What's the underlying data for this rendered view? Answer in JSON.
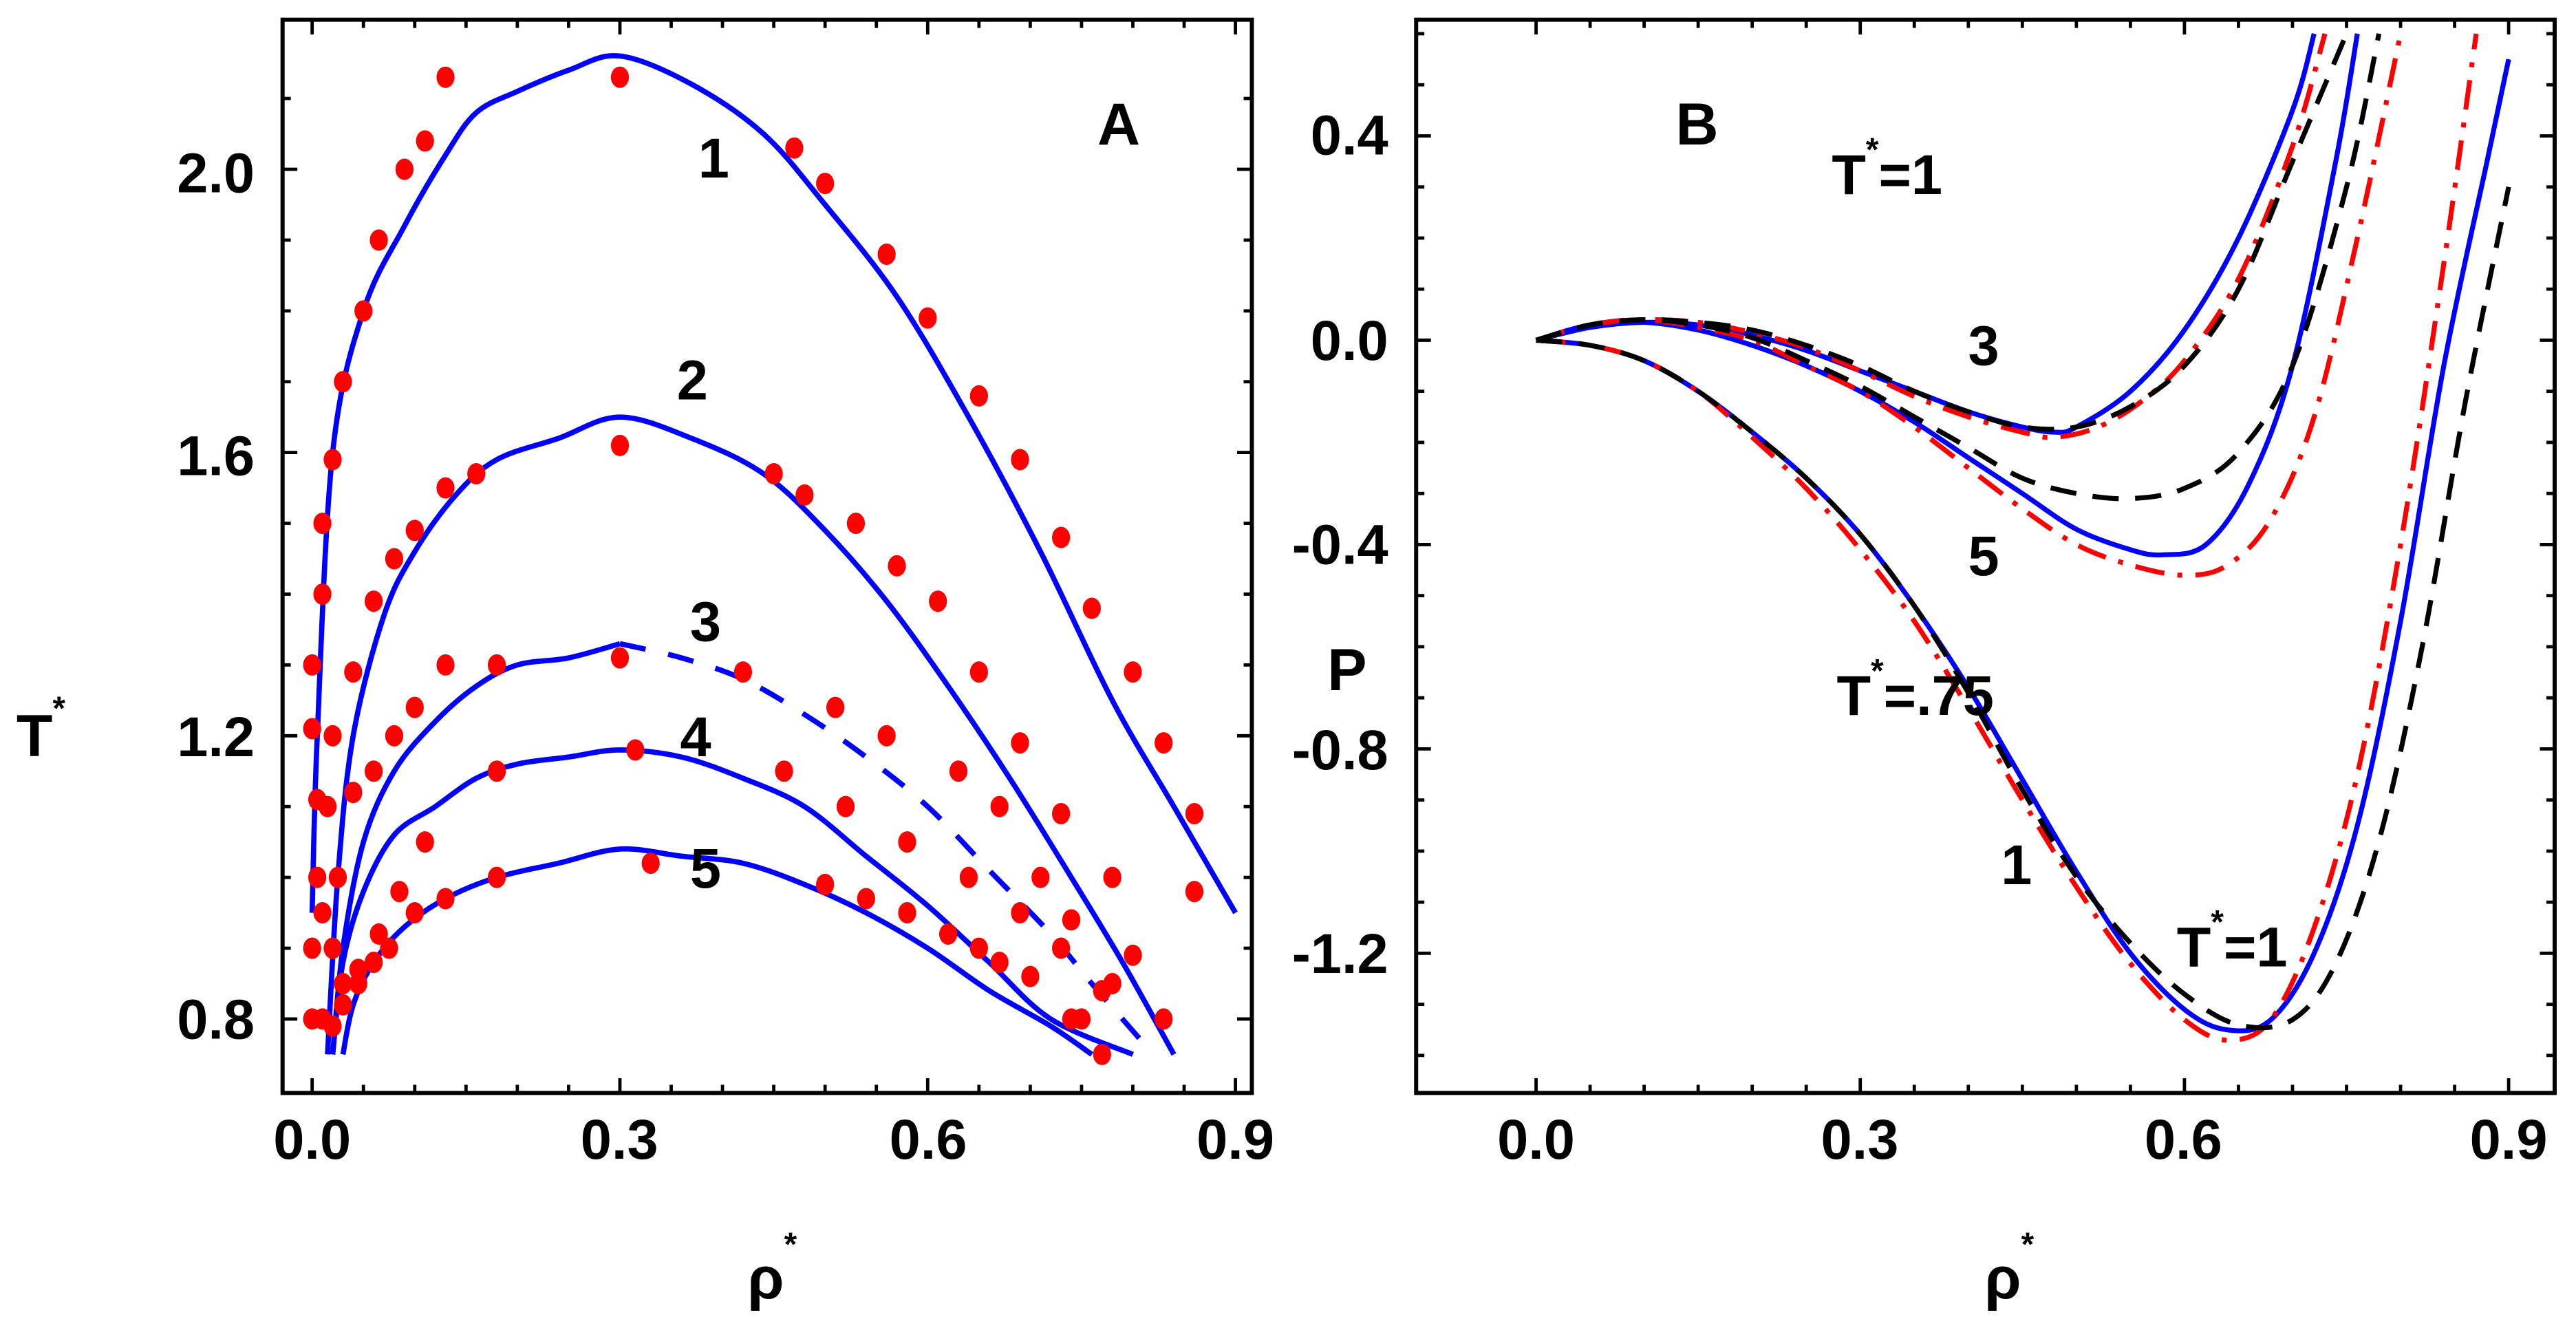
{
  "chart_data": [
    {
      "panel": "A",
      "type": "line",
      "title": "",
      "xlabel": "ρ*",
      "ylabel": "T*",
      "xlim": [
        -0.01,
        0.92
      ],
      "ylim": [
        0.74,
        2.18
      ],
      "xticks": [
        "0.0",
        "0.3",
        "0.6",
        "0.9"
      ],
      "yticks": [
        "0.8",
        "1.2",
        "1.6",
        "2.0"
      ],
      "grid": false,
      "annotations": [
        "A",
        "1",
        "2",
        "3",
        "4",
        "5"
      ],
      "series": [
        {
          "name": "1 (theory, solid blue)",
          "style": "solid",
          "color": "#0000ff",
          "x": [
            0.0,
            0.005,
            0.02,
            0.05,
            0.09,
            0.13,
            0.16,
            0.2,
            0.25,
            0.3,
            0.37,
            0.44,
            0.5,
            0.57,
            0.64,
            0.71,
            0.78,
            0.84,
            0.9
          ],
          "y": [
            0.95,
            1.2,
            1.6,
            1.8,
            1.92,
            2.02,
            2.08,
            2.11,
            2.14,
            2.16,
            2.12,
            2.05,
            1.95,
            1.82,
            1.65,
            1.46,
            1.25,
            1.1,
            0.95
          ]
        },
        {
          "name": "2 (theory, solid blue)",
          "style": "solid",
          "color": "#0000ff",
          "x": [
            0.015,
            0.025,
            0.04,
            0.07,
            0.1,
            0.14,
            0.18,
            0.24,
            0.3,
            0.37,
            0.44,
            0.5,
            0.56,
            0.62,
            0.68,
            0.74,
            0.79,
            0.84
          ],
          "y": [
            0.75,
            1.0,
            1.2,
            1.37,
            1.46,
            1.54,
            1.59,
            1.62,
            1.65,
            1.62,
            1.57,
            1.49,
            1.39,
            1.27,
            1.14,
            1.0,
            0.88,
            0.75
          ]
        },
        {
          "name": "3 (theory, solid→dashed blue)",
          "style": "solid-then-dashed",
          "color": "#0000ff",
          "x": [
            0.02,
            0.03,
            0.05,
            0.08,
            0.12,
            0.16,
            0.2,
            0.25,
            0.3,
            0.36,
            0.42,
            0.48,
            0.54,
            0.6,
            0.66,
            0.72,
            0.76,
            0.82
          ],
          "y": [
            0.75,
            0.9,
            1.05,
            1.15,
            1.22,
            1.27,
            1.3,
            1.31,
            1.33,
            1.31,
            1.28,
            1.23,
            1.17,
            1.1,
            1.01,
            0.92,
            0.85,
            0.75
          ]
        },
        {
          "name": "4 (theory, solid blue)",
          "style": "solid",
          "color": "#0000ff",
          "x": [
            0.02,
            0.03,
            0.05,
            0.08,
            0.12,
            0.16,
            0.2,
            0.25,
            0.3,
            0.36,
            0.42,
            0.48,
            0.54,
            0.6,
            0.66,
            0.72,
            0.8
          ],
          "y": [
            0.75,
            0.88,
            0.98,
            1.06,
            1.1,
            1.14,
            1.16,
            1.17,
            1.18,
            1.17,
            1.14,
            1.1,
            1.03,
            0.96,
            0.88,
            0.8,
            0.75
          ]
        },
        {
          "name": "5 (theory, solid blue)",
          "style": "solid",
          "color": "#0000ff",
          "x": [
            0.03,
            0.04,
            0.06,
            0.09,
            0.13,
            0.18,
            0.24,
            0.3,
            0.36,
            0.42,
            0.48,
            0.54,
            0.6,
            0.66,
            0.72,
            0.76
          ],
          "y": [
            0.75,
            0.82,
            0.88,
            0.93,
            0.97,
            1.0,
            1.02,
            1.04,
            1.03,
            1.02,
            0.99,
            0.95,
            0.9,
            0.84,
            0.79,
            0.75
          ]
        },
        {
          "name": "simulation points (red circles)",
          "style": "markers",
          "color": "#ff0000",
          "x": [
            0.0,
            0.0,
            0.005,
            0.005,
            0.0,
            0.01,
            0.02,
            0.03,
            0.05,
            0.065,
            0.09,
            0.11,
            0.13,
            0.3,
            0.47,
            0.5,
            0.56,
            0.6,
            0.65,
            0.69,
            0.73,
            0.76,
            0.8,
            0.83,
            0.86,
            0.86,
            0.01,
            0.02,
            0.04,
            0.06,
            0.08,
            0.1,
            0.13,
            0.16,
            0.3,
            0.45,
            0.48,
            0.53,
            0.57,
            0.61,
            0.65,
            0.69,
            0.73,
            0.78,
            0.8,
            0.83,
            0.015,
            0.025,
            0.04,
            0.06,
            0.08,
            0.1,
            0.13,
            0.18,
            0.3,
            0.42,
            0.51,
            0.56,
            0.63,
            0.67,
            0.71,
            0.74,
            0.78,
            0.01,
            0.02,
            0.03,
            0.045,
            0.065,
            0.085,
            0.11,
            0.18,
            0.315,
            0.46,
            0.52,
            0.58,
            0.64,
            0.69,
            0.73,
            0.77,
            0.0,
            0.01,
            0.02,
            0.03,
            0.045,
            0.06,
            0.075,
            0.1,
            0.13,
            0.18,
            0.33,
            0.5,
            0.54,
            0.58,
            0.62,
            0.65,
            0.67,
            0.7,
            0.74,
            0.75,
            0.77
          ],
          "y": [
            1.3,
            1.21,
            1.11,
            1.0,
            0.9,
            1.4,
            1.59,
            1.7,
            1.8,
            1.9,
            2.0,
            2.04,
            2.13,
            2.13,
            2.03,
            1.98,
            1.88,
            1.79,
            1.68,
            1.59,
            1.48,
            1.38,
            1.29,
            1.19,
            1.09,
            0.98,
            1.5,
            1.2,
            1.29,
            1.39,
            1.45,
            1.49,
            1.55,
            1.57,
            1.61,
            1.57,
            1.54,
            1.5,
            1.44,
            1.39,
            1.29,
            1.19,
            1.09,
            1.0,
            0.89,
            0.8,
            1.1,
            1.0,
            1.12,
            1.15,
            1.2,
            1.24,
            1.3,
            1.3,
            1.31,
            1.29,
            1.24,
            1.2,
            1.15,
            1.1,
            1.0,
            0.94,
            0.85,
            0.95,
            0.9,
            0.85,
            0.87,
            0.92,
            0.98,
            1.05,
            1.15,
            1.18,
            1.15,
            1.1,
            1.05,
            1.0,
            0.95,
            0.9,
            0.84,
            0.8,
            0.8,
            0.79,
            0.82,
            0.85,
            0.88,
            0.9,
            0.95,
            0.97,
            1.0,
            1.02,
            0.99,
            0.97,
            0.95,
            0.92,
            0.9,
            0.88,
            0.86,
            0.8,
            0.8,
            0.75
          ]
        }
      ]
    },
    {
      "panel": "B",
      "type": "line",
      "title": "",
      "xlabel": "ρ*",
      "ylabel": "P",
      "xlim": [
        0.0,
        0.92
      ],
      "ylim": [
        -1.4,
        0.6
      ],
      "xticks": [
        "0.0",
        "0.3",
        "0.6",
        "0.9"
      ],
      "yticks": [
        "-1.2",
        "-0.8",
        "-0.4",
        "0.0",
        "0.4"
      ],
      "grid": false,
      "annotations": [
        "B",
        "T*=1",
        "3",
        "5",
        "T*=.75",
        "1",
        "T*=1"
      ],
      "series": [
        {
          "name": "curve 3 (T*=1) blue solid",
          "style": "solid",
          "color": "#0000ff",
          "x": [
            0.0,
            0.05,
            0.1,
            0.15,
            0.2,
            0.25,
            0.3,
            0.35,
            0.4,
            0.45,
            0.48,
            0.5,
            0.55,
            0.6,
            0.65,
            0.7,
            0.72
          ],
          "y": [
            0.0,
            0.025,
            0.035,
            0.03,
            0.01,
            -0.02,
            -0.06,
            -0.1,
            -0.14,
            -0.17,
            -0.18,
            -0.17,
            -0.1,
            0.02,
            0.2,
            0.45,
            0.6
          ]
        },
        {
          "name": "curve 3 (T*=1) red dash-dot",
          "style": "dashdot",
          "color": "#ff0000",
          "x": [
            0.0,
            0.05,
            0.1,
            0.15,
            0.2,
            0.25,
            0.3,
            0.35,
            0.4,
            0.45,
            0.48,
            0.52,
            0.56,
            0.6,
            0.65,
            0.7,
            0.73
          ],
          "y": [
            0.0,
            0.03,
            0.04,
            0.035,
            0.015,
            -0.015,
            -0.06,
            -0.11,
            -0.15,
            -0.18,
            -0.19,
            -0.17,
            -0.12,
            -0.04,
            0.12,
            0.38,
            0.6
          ]
        },
        {
          "name": "curve 3 (T*=1) black dashed",
          "style": "dashed",
          "color": "#000000",
          "x": [
            0.0,
            0.05,
            0.1,
            0.15,
            0.2,
            0.25,
            0.3,
            0.35,
            0.4,
            0.45,
            0.5,
            0.55,
            0.6,
            0.65,
            0.7,
            0.75
          ],
          "y": [
            0.0,
            0.03,
            0.04,
            0.035,
            0.02,
            -0.01,
            -0.05,
            -0.1,
            -0.14,
            -0.17,
            -0.17,
            -0.13,
            -0.05,
            0.1,
            0.35,
            0.6
          ]
        },
        {
          "name": "curve 5 (T*=.75) blue solid",
          "style": "solid",
          "color": "#0000ff",
          "x": [
            0.0,
            0.05,
            0.1,
            0.15,
            0.2,
            0.25,
            0.3,
            0.35,
            0.4,
            0.45,
            0.5,
            0.55,
            0.58,
            0.62,
            0.66,
            0.7,
            0.74,
            0.76
          ],
          "y": [
            0.0,
            0.03,
            0.035,
            0.02,
            -0.01,
            -0.05,
            -0.1,
            -0.16,
            -0.23,
            -0.3,
            -0.37,
            -0.41,
            -0.42,
            -0.4,
            -0.28,
            -0.05,
            0.35,
            0.6
          ]
        },
        {
          "name": "curve 5 (T*=.75) red dash-dot",
          "style": "dashdot",
          "color": "#ff0000",
          "x": [
            0.0,
            0.05,
            0.1,
            0.15,
            0.2,
            0.25,
            0.3,
            0.35,
            0.4,
            0.45,
            0.5,
            0.55,
            0.6,
            0.64,
            0.68,
            0.72,
            0.76,
            0.8
          ],
          "y": [
            0.0,
            0.03,
            0.04,
            0.025,
            0.0,
            -0.05,
            -0.1,
            -0.17,
            -0.25,
            -0.33,
            -0.4,
            -0.44,
            -0.46,
            -0.44,
            -0.35,
            -0.15,
            0.2,
            0.6
          ]
        },
        {
          "name": "curve 5 (T*=.75) black dashed",
          "style": "dashed",
          "color": "#000000",
          "x": [
            0.0,
            0.05,
            0.1,
            0.15,
            0.2,
            0.25,
            0.3,
            0.35,
            0.4,
            0.45,
            0.5,
            0.55,
            0.6,
            0.65,
            0.7,
            0.75,
            0.78
          ],
          "y": [
            0.0,
            0.03,
            0.04,
            0.03,
            0.005,
            -0.04,
            -0.09,
            -0.15,
            -0.21,
            -0.27,
            -0.3,
            -0.31,
            -0.29,
            -0.22,
            -0.05,
            0.3,
            0.6
          ]
        },
        {
          "name": "curve 1 (T*=1) blue solid",
          "style": "solid",
          "color": "#0000ff",
          "x": [
            0.0,
            0.05,
            0.1,
            0.15,
            0.2,
            0.25,
            0.3,
            0.35,
            0.4,
            0.45,
            0.5,
            0.55,
            0.6,
            0.64,
            0.68,
            0.72,
            0.76,
            0.8,
            0.84,
            0.88,
            0.9
          ],
          "y": [
            0.0,
            -0.01,
            -0.04,
            -0.1,
            -0.18,
            -0.27,
            -0.38,
            -0.52,
            -0.68,
            -0.86,
            -1.04,
            -1.2,
            -1.31,
            -1.35,
            -1.33,
            -1.2,
            -0.95,
            -0.55,
            -0.05,
            0.35,
            0.55
          ]
        },
        {
          "name": "curve 1 (T*=1) red dash-dot",
          "style": "dashdot",
          "color": "#ff0000",
          "x": [
            0.0,
            0.05,
            0.1,
            0.15,
            0.2,
            0.25,
            0.3,
            0.35,
            0.4,
            0.45,
            0.5,
            0.55,
            0.6,
            0.64,
            0.68,
            0.72,
            0.76,
            0.8,
            0.84,
            0.87
          ],
          "y": [
            0.0,
            -0.01,
            -0.04,
            -0.1,
            -0.19,
            -0.29,
            -0.41,
            -0.55,
            -0.72,
            -0.9,
            -1.07,
            -1.22,
            -1.33,
            -1.37,
            -1.33,
            -1.15,
            -0.85,
            -0.4,
            0.15,
            0.6
          ]
        },
        {
          "name": "curve 1 (T*=1) black dashed",
          "style": "dashed",
          "color": "#000000",
          "x": [
            0.0,
            0.05,
            0.1,
            0.15,
            0.2,
            0.25,
            0.3,
            0.35,
            0.4,
            0.45,
            0.5,
            0.55,
            0.6,
            0.65,
            0.7,
            0.74,
            0.78,
            0.82,
            0.86,
            0.9
          ],
          "y": [
            0.0,
            -0.01,
            -0.04,
            -0.1,
            -0.18,
            -0.27,
            -0.38,
            -0.52,
            -0.69,
            -0.88,
            -1.05,
            -1.18,
            -1.28,
            -1.34,
            -1.33,
            -1.22,
            -0.98,
            -0.6,
            -0.12,
            0.3
          ]
        }
      ]
    }
  ],
  "labels": {
    "panelA": {
      "panel_letter": "A",
      "x_title": "ρ",
      "x_title_sup": "*",
      "y_title": "T",
      "y_title_sup": "*",
      "xticks": [
        "0.0",
        "0.3",
        "0.6",
        "0.9"
      ],
      "yticks": [
        "0.8",
        "1.2",
        "1.6",
        "2.0"
      ],
      "curve_labels": [
        "1",
        "2",
        "3",
        "4",
        "5"
      ]
    },
    "panelB": {
      "panel_letter": "B",
      "x_title": "ρ",
      "x_title_sup": "*",
      "y_title": "P",
      "xticks": [
        "0.0",
        "0.3",
        "0.6",
        "0.9"
      ],
      "yticks": [
        "0.4",
        "0.0",
        "-0.4",
        "-0.8",
        "-1.2"
      ],
      "annot_T1_top_main": "T",
      "annot_T1_top_rest": "=1",
      "annot_3": "3",
      "annot_5": "5",
      "annot_T75_main": "T",
      "annot_T75_rest": "=.75",
      "annot_1": "1",
      "annot_T1_bottom_main": "T",
      "annot_T1_bottom_rest": "=1",
      "sup": "*"
    }
  },
  "colors": {
    "theory": "#0000ff",
    "simulation": "#ff0000",
    "dashed": "#000000",
    "axis": "#000000"
  }
}
